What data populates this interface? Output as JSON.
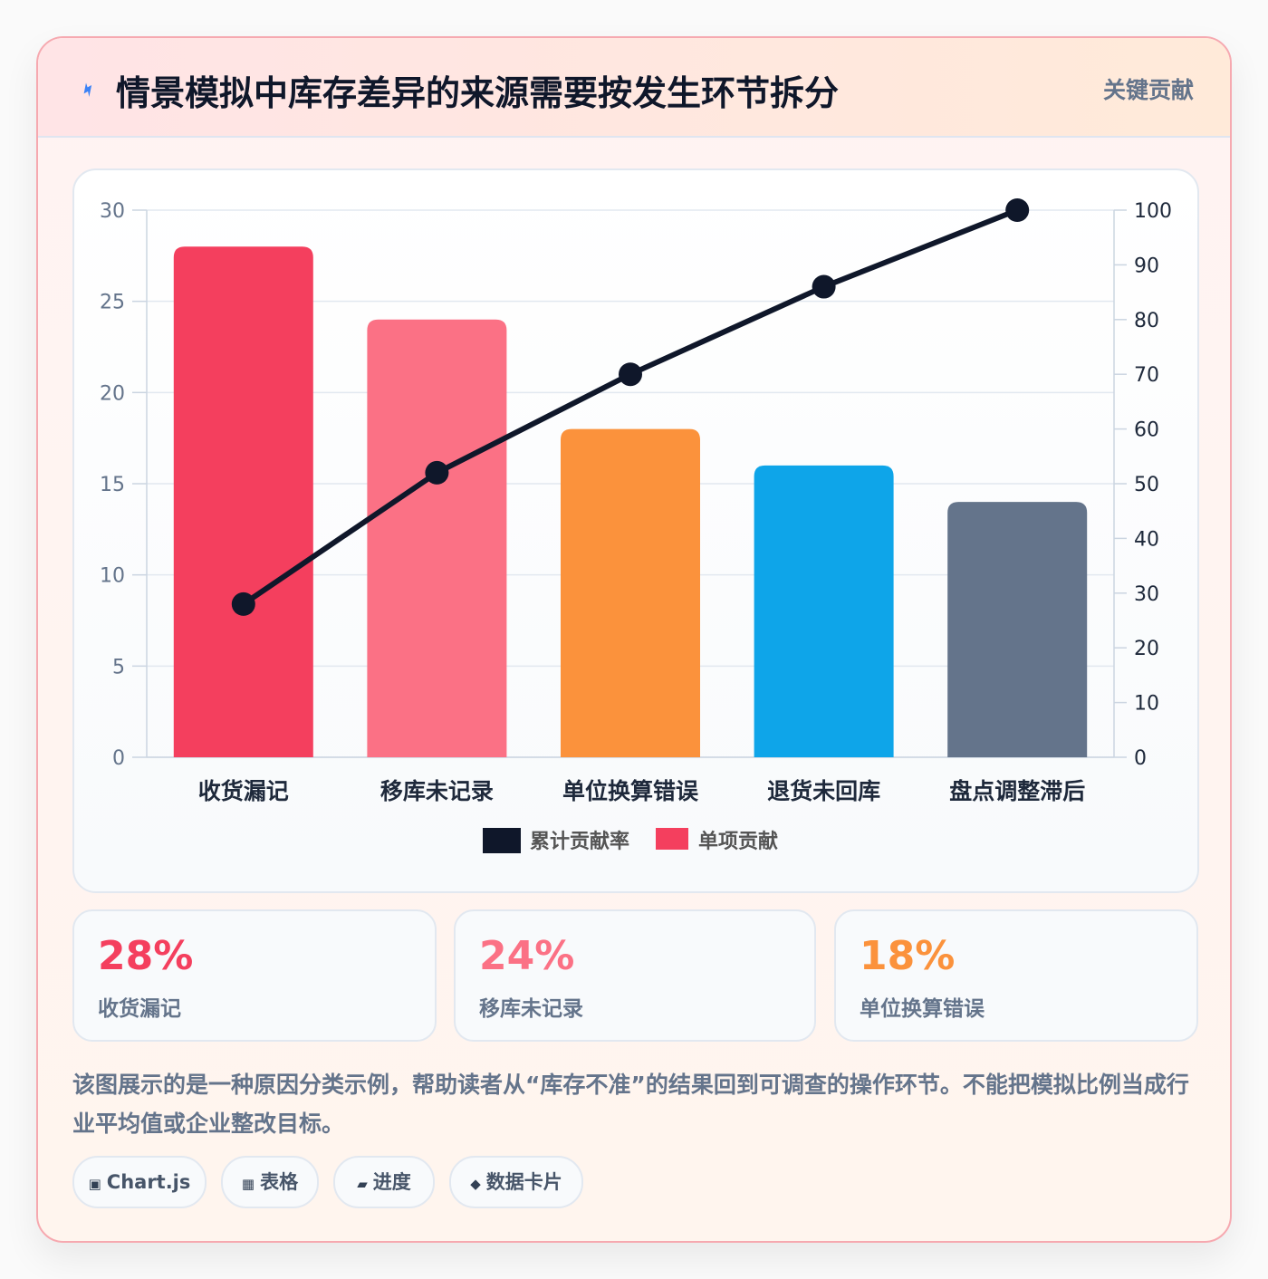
{
  "header": {
    "title": "情景模拟中库存差异的来源需要按发生环节拆分",
    "badge": "关键贡献",
    "icon": "lightning-icon"
  },
  "chart_data": {
    "type": "bar",
    "categories": [
      "收货漏记",
      "移库未记录",
      "单位换算错误",
      "退货未回库",
      "盘点调整滞后"
    ],
    "series": [
      {
        "name": "单项贡献",
        "type": "bar",
        "axis": "left",
        "values": [
          28,
          24,
          18,
          16,
          14
        ],
        "colors": [
          "#f43f5e",
          "#fb7185",
          "#fb923c",
          "#0ea5e9",
          "#64748b"
        ]
      },
      {
        "name": "累计贡献率",
        "type": "line",
        "axis": "right",
        "values": [
          28,
          52,
          70,
          86,
          100
        ],
        "color": "#0f172a"
      }
    ],
    "y_left": {
      "ylim": [
        0,
        30
      ],
      "ticks": [
        0,
        5,
        10,
        15,
        20,
        25,
        30
      ]
    },
    "y_right": {
      "ylim": [
        0,
        100
      ],
      "ticks": [
        0,
        10,
        20,
        30,
        40,
        50,
        60,
        70,
        80,
        90,
        100
      ]
    },
    "legend": {
      "placement": "bottom",
      "items": [
        "累计贡献率",
        "单项贡献"
      ]
    },
    "grid": true
  },
  "stats": [
    {
      "value": "28%",
      "label": "收货漏记",
      "color": "#f43f5e"
    },
    {
      "value": "24%",
      "label": "移库未记录",
      "color": "#fb7185"
    },
    {
      "value": "18%",
      "label": "单位换算错误",
      "color": "#fb923c"
    }
  ],
  "description": "该图展示的是一种原因分类示例，帮助读者从“库存不准”的结果回到可调查的操作环节。不能把模拟比例当成行业平均值或企业整改目标。",
  "tags": [
    {
      "icon": "▣",
      "icon_name": "chart-icon",
      "label": "Chart.js"
    },
    {
      "icon": "▦",
      "icon_name": "table-icon",
      "label": "表格"
    },
    {
      "icon": "▰",
      "icon_name": "progress-icon",
      "label": "进度"
    },
    {
      "icon": "◆",
      "icon_name": "card-icon",
      "label": "数据卡片"
    }
  ]
}
